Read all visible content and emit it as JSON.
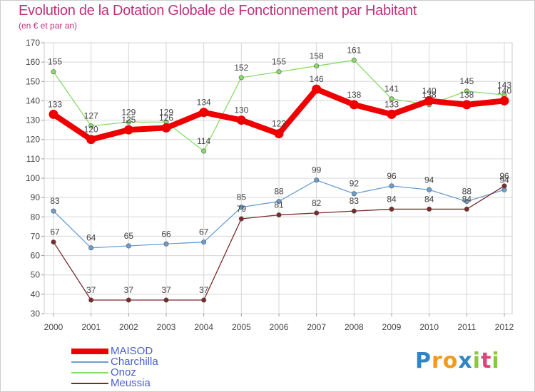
{
  "title": "Evolution de la Dotation Globale de Fonctionnement par Habitant",
  "subtitle": "(en € et par an)",
  "brand": {
    "text": "Proxiti",
    "letters": [
      {
        "ch": "P",
        "color": "#2e86c8"
      },
      {
        "ch": "r",
        "color": "#f39a1e"
      },
      {
        "ch": "o",
        "color": "#f39a1e"
      },
      {
        "ch": "x",
        "color": "#2e86c8"
      },
      {
        "ch": "i",
        "color": "#8cc63e"
      },
      {
        "ch": "t",
        "color": "#e2427c"
      },
      {
        "ch": "i",
        "color": "#8cc63e"
      }
    ]
  },
  "chart_data": {
    "type": "line",
    "x": [
      "2000",
      "2001",
      "2002",
      "2003",
      "2004",
      "2005",
      "2006",
      "2007",
      "2008",
      "2009",
      "2010",
      "2011",
      "2012"
    ],
    "ylim": [
      30,
      170
    ],
    "yticks": [
      30,
      40,
      50,
      60,
      70,
      80,
      90,
      100,
      110,
      120,
      130,
      140,
      150,
      160,
      170
    ],
    "grid": true,
    "legend_position": "bottom-left",
    "series": [
      {
        "name": "MAISOD",
        "color": "#ee0000",
        "emphasis": true,
        "values": [
          133,
          120,
          125,
          126,
          134,
          130,
          123,
          146,
          138,
          133,
          140,
          138,
          140
        ],
        "labels": [
          "133",
          "120",
          "125",
          "126",
          "134",
          "130",
          "123",
          "146",
          "138",
          "133",
          "140",
          "138",
          "140"
        ]
      },
      {
        "name": "Charchilla",
        "color": "#6a9fd0",
        "values": [
          83,
          64,
          65,
          66,
          67,
          85,
          88,
          99,
          92,
          96,
          94,
          88,
          94
        ],
        "labels": [
          "83",
          "64",
          "65",
          "66",
          "67",
          "85",
          "88",
          "99",
          "92",
          "96",
          "94",
          "88",
          "94"
        ]
      },
      {
        "name": "Onoz",
        "color": "#88dd66",
        "values": [
          155,
          127,
          129,
          129,
          114,
          152,
          155,
          158,
          161,
          141,
          138,
          145,
          143
        ],
        "labels": [
          "155",
          "127",
          "129",
          "129",
          "114",
          "152",
          "155",
          "158",
          "161",
          "141",
          "138",
          "145",
          "143"
        ]
      },
      {
        "name": "Meussia",
        "color": "#7a2a2a",
        "values": [
          67,
          37,
          37,
          37,
          37,
          79,
          81,
          82,
          83,
          84,
          84,
          84,
          96
        ],
        "labels": [
          "67",
          "37",
          "37",
          "37",
          "37",
          "79",
          "81",
          "82",
          "83",
          "84",
          "84",
          "84",
          "96"
        ]
      }
    ]
  }
}
